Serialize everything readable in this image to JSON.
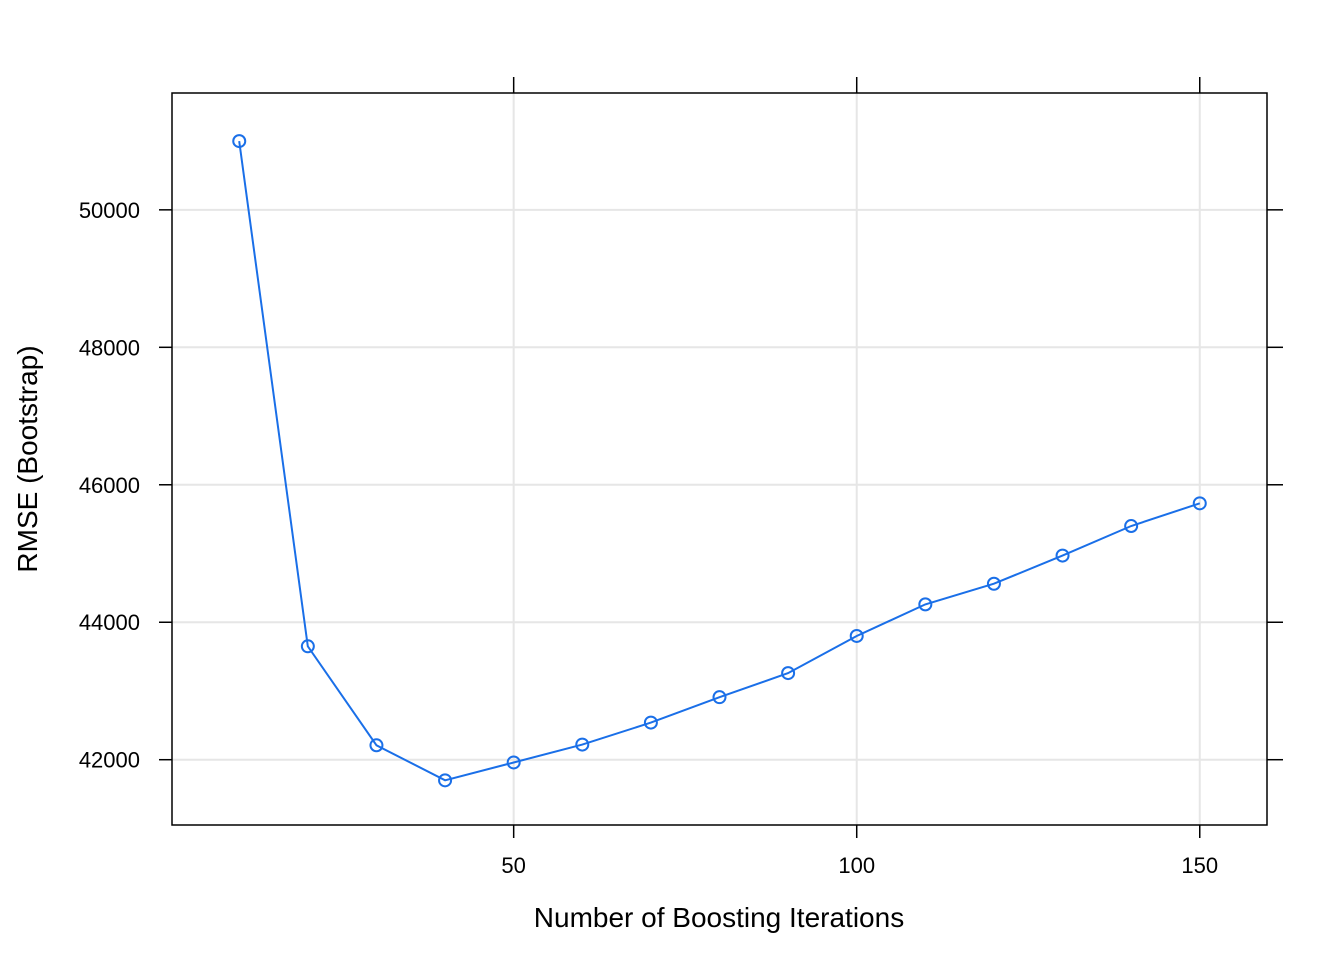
{
  "chart_data": {
    "type": "line",
    "title": "",
    "xlabel": "Number of Boosting Iterations",
    "ylabel": "RMSE (Bootstrap)",
    "x_ticks": [
      50,
      100,
      150
    ],
    "y_ticks": [
      42000,
      44000,
      46000,
      48000,
      50000
    ],
    "xlim": [
      0.2,
      159.8
    ],
    "ylim": [
      41050,
      51700
    ],
    "grid": true,
    "legend": "none",
    "colors": {
      "series": "#1A6FE8",
      "grid": "#E6E6E6",
      "axis": "#000000"
    },
    "series": [
      {
        "x": [
          10,
          20,
          30,
          40,
          50,
          60,
          70,
          80,
          90,
          100,
          110,
          120,
          130,
          140,
          150
        ],
        "y": [
          51000,
          43650,
          42210,
          41700,
          41960,
          42220,
          42540,
          42910,
          43260,
          43800,
          44260,
          44560,
          44970,
          45400,
          45730
        ]
      }
    ]
  }
}
